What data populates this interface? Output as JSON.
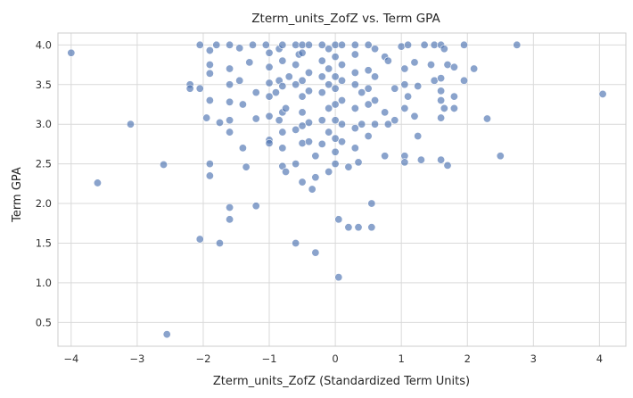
{
  "chart_data": {
    "type": "scatter",
    "title": "Zterm_units_ZofZ vs. Term GPA",
    "xlabel": "Zterm_units_ZofZ (Standardized Term Units)",
    "ylabel": "Term GPA",
    "xlim": [
      -4.2,
      4.4
    ],
    "ylim": [
      0.2,
      4.15
    ],
    "xticks": [
      -4,
      -3,
      -2,
      -1,
      0,
      1,
      2,
      3,
      4
    ],
    "yticks": [
      0.5,
      1.0,
      1.5,
      2.0,
      2.5,
      3.0,
      3.5,
      4.0
    ],
    "grid": true,
    "legend": "none",
    "colors": {
      "points": "#4c72b0",
      "grid": "#d9d9d9",
      "background": "#ffffff"
    },
    "series": [
      {
        "values": [
          [
            -4.0,
            3.9
          ],
          [
            -3.6,
            2.26
          ],
          [
            -3.1,
            3.0
          ],
          [
            -2.6,
            2.49
          ],
          [
            -2.55,
            0.35
          ],
          [
            -2.2,
            3.5
          ],
          [
            -2.2,
            3.45
          ],
          [
            -2.05,
            4.0
          ],
          [
            -2.05,
            3.45
          ],
          [
            -2.05,
            1.55
          ],
          [
            -1.95,
            3.08
          ],
          [
            -1.9,
            3.93
          ],
          [
            -1.9,
            3.75
          ],
          [
            -1.9,
            3.64
          ],
          [
            -1.9,
            3.3
          ],
          [
            -1.9,
            2.5
          ],
          [
            -1.9,
            2.35
          ],
          [
            -1.8,
            4.0
          ],
          [
            -1.75,
            3.02
          ],
          [
            -1.75,
            1.5
          ],
          [
            -1.6,
            4.0
          ],
          [
            -1.6,
            3.7
          ],
          [
            -1.6,
            3.5
          ],
          [
            -1.6,
            3.28
          ],
          [
            -1.6,
            3.05
          ],
          [
            -1.6,
            2.9
          ],
          [
            -1.6,
            1.95
          ],
          [
            -1.6,
            1.8
          ],
          [
            -1.45,
            3.96
          ],
          [
            -1.45,
            3.55
          ],
          [
            -1.4,
            3.25
          ],
          [
            -1.4,
            2.7
          ],
          [
            -1.35,
            2.46
          ],
          [
            -1.3,
            3.78
          ],
          [
            -1.25,
            4.0
          ],
          [
            -1.2,
            3.4
          ],
          [
            -1.2,
            3.07
          ],
          [
            -1.2,
            1.97
          ],
          [
            -1.05,
            4.0
          ],
          [
            -1.0,
            3.9
          ],
          [
            -1.0,
            3.72
          ],
          [
            -1.0,
            3.52
          ],
          [
            -1.0,
            3.35
          ],
          [
            -1.0,
            3.1
          ],
          [
            -1.0,
            2.8
          ],
          [
            -1.0,
            2.76
          ],
          [
            -0.9,
            3.4
          ],
          [
            -0.85,
            3.95
          ],
          [
            -0.85,
            3.55
          ],
          [
            -0.85,
            3.05
          ],
          [
            -0.8,
            4.0
          ],
          [
            -0.8,
            3.8
          ],
          [
            -0.8,
            3.48
          ],
          [
            -0.8,
            3.15
          ],
          [
            -0.8,
            2.9
          ],
          [
            -0.8,
            2.7
          ],
          [
            -0.8,
            2.47
          ],
          [
            -0.75,
            3.2
          ],
          [
            -0.75,
            2.4
          ],
          [
            -0.7,
            3.6
          ],
          [
            -0.6,
            4.0
          ],
          [
            -0.6,
            3.75
          ],
          [
            -0.6,
            3.5
          ],
          [
            -0.6,
            2.93
          ],
          [
            -0.6,
            2.5
          ],
          [
            -0.6,
            1.5
          ],
          [
            -0.55,
            3.88
          ],
          [
            -0.5,
            4.0
          ],
          [
            -0.5,
            3.9
          ],
          [
            -0.5,
            3.55
          ],
          [
            -0.5,
            3.35
          ],
          [
            -0.5,
            3.15
          ],
          [
            -0.5,
            2.98
          ],
          [
            -0.5,
            2.76
          ],
          [
            -0.5,
            2.27
          ],
          [
            -0.4,
            4.0
          ],
          [
            -0.4,
            3.65
          ],
          [
            -0.4,
            3.42
          ],
          [
            -0.4,
            3.02
          ],
          [
            -0.4,
            2.78
          ],
          [
            -0.35,
            2.18
          ],
          [
            -0.3,
            2.6
          ],
          [
            -0.3,
            2.33
          ],
          [
            -0.3,
            1.38
          ],
          [
            -0.2,
            4.0
          ],
          [
            -0.2,
            3.8
          ],
          [
            -0.2,
            3.6
          ],
          [
            -0.2,
            3.4
          ],
          [
            -0.2,
            3.05
          ],
          [
            -0.2,
            2.75
          ],
          [
            -0.1,
            3.95
          ],
          [
            -0.1,
            3.7
          ],
          [
            -0.1,
            3.5
          ],
          [
            -0.1,
            3.2
          ],
          [
            -0.1,
            2.9
          ],
          [
            -0.1,
            2.4
          ],
          [
            0.0,
            4.0
          ],
          [
            0.0,
            3.85
          ],
          [
            0.0,
            3.6
          ],
          [
            0.0,
            3.45
          ],
          [
            0.0,
            3.25
          ],
          [
            0.0,
            3.05
          ],
          [
            0.0,
            2.82
          ],
          [
            0.0,
            2.65
          ],
          [
            0.0,
            2.5
          ],
          [
            0.05,
            1.8
          ],
          [
            0.05,
            1.07
          ],
          [
            0.1,
            4.0
          ],
          [
            0.1,
            3.75
          ],
          [
            0.1,
            3.55
          ],
          [
            0.1,
            3.3
          ],
          [
            0.1,
            3.0
          ],
          [
            0.1,
            2.78
          ],
          [
            0.2,
            2.46
          ],
          [
            0.2,
            1.7
          ],
          [
            0.3,
            4.0
          ],
          [
            0.3,
            3.88
          ],
          [
            0.3,
            3.65
          ],
          [
            0.3,
            3.5
          ],
          [
            0.3,
            3.2
          ],
          [
            0.3,
            2.95
          ],
          [
            0.3,
            2.7
          ],
          [
            0.35,
            2.52
          ],
          [
            0.35,
            1.7
          ],
          [
            0.4,
            3.4
          ],
          [
            0.4,
            3.0
          ],
          [
            0.5,
            4.0
          ],
          [
            0.5,
            3.68
          ],
          [
            0.5,
            3.45
          ],
          [
            0.5,
            3.25
          ],
          [
            0.5,
            2.85
          ],
          [
            0.55,
            2.0
          ],
          [
            0.55,
            1.7
          ],
          [
            0.6,
            3.95
          ],
          [
            0.6,
            3.6
          ],
          [
            0.6,
            3.3
          ],
          [
            0.6,
            3.0
          ],
          [
            0.75,
            3.85
          ],
          [
            0.75,
            3.15
          ],
          [
            0.75,
            2.6
          ],
          [
            0.8,
            3.8
          ],
          [
            0.8,
            3.0
          ],
          [
            0.9,
            3.45
          ],
          [
            0.9,
            3.05
          ],
          [
            1.0,
            3.98
          ],
          [
            1.05,
            3.7
          ],
          [
            1.05,
            3.5
          ],
          [
            1.05,
            3.2
          ],
          [
            1.05,
            2.6
          ],
          [
            1.05,
            2.52
          ],
          [
            1.1,
            4.0
          ],
          [
            1.1,
            3.35
          ],
          [
            1.2,
            3.78
          ],
          [
            1.2,
            3.1
          ],
          [
            1.25,
            3.48
          ],
          [
            1.25,
            2.85
          ],
          [
            1.3,
            2.55
          ],
          [
            1.35,
            4.0
          ],
          [
            1.45,
            3.75
          ],
          [
            1.5,
            4.0
          ],
          [
            1.5,
            3.55
          ],
          [
            1.6,
            4.0
          ],
          [
            1.6,
            3.58
          ],
          [
            1.6,
            3.42
          ],
          [
            1.6,
            3.3
          ],
          [
            1.6,
            3.08
          ],
          [
            1.6,
            2.55
          ],
          [
            1.65,
            3.95
          ],
          [
            1.65,
            3.2
          ],
          [
            1.7,
            3.75
          ],
          [
            1.7,
            2.48
          ],
          [
            1.8,
            3.72
          ],
          [
            1.8,
            3.35
          ],
          [
            1.8,
            3.2
          ],
          [
            1.95,
            4.0
          ],
          [
            1.95,
            3.55
          ],
          [
            2.1,
            3.7
          ],
          [
            2.3,
            3.07
          ],
          [
            2.5,
            2.6
          ],
          [
            2.75,
            4.0
          ],
          [
            4.05,
            3.38
          ]
        ]
      }
    ]
  }
}
